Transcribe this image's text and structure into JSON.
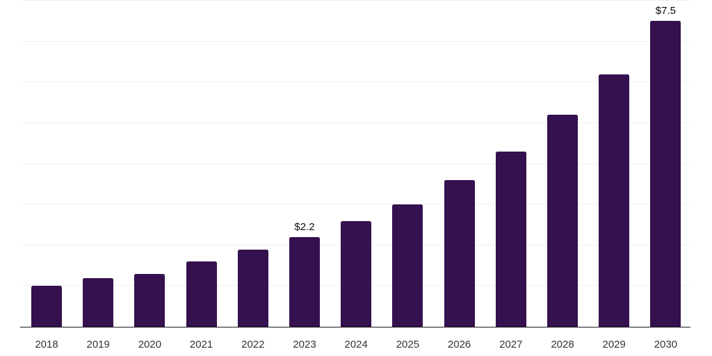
{
  "chart_data": {
    "type": "bar",
    "title": "",
    "xlabel": "",
    "ylabel": "",
    "categories": [
      "2018",
      "2019",
      "2020",
      "2021",
      "2022",
      "2023",
      "2024",
      "2025",
      "2026",
      "2027",
      "2028",
      "2029",
      "2030"
    ],
    "values": [
      1.0,
      1.2,
      1.3,
      1.6,
      1.9,
      2.2,
      2.6,
      3.0,
      3.6,
      4.3,
      5.2,
      6.2,
      7.5
    ],
    "data_labels": {
      "2023": "$2.2",
      "2030": "$7.5"
    },
    "ylim": [
      0,
      8
    ],
    "gridline_step": 1,
    "grid": "horizontal",
    "legend": "none",
    "colors": {
      "bar": "#35114F",
      "gridline": "#efefef",
      "axis_line": "#1b1b1b",
      "tick_label": "#333333",
      "data_label": "#0d0d0d",
      "background": "#ffffff"
    }
  }
}
